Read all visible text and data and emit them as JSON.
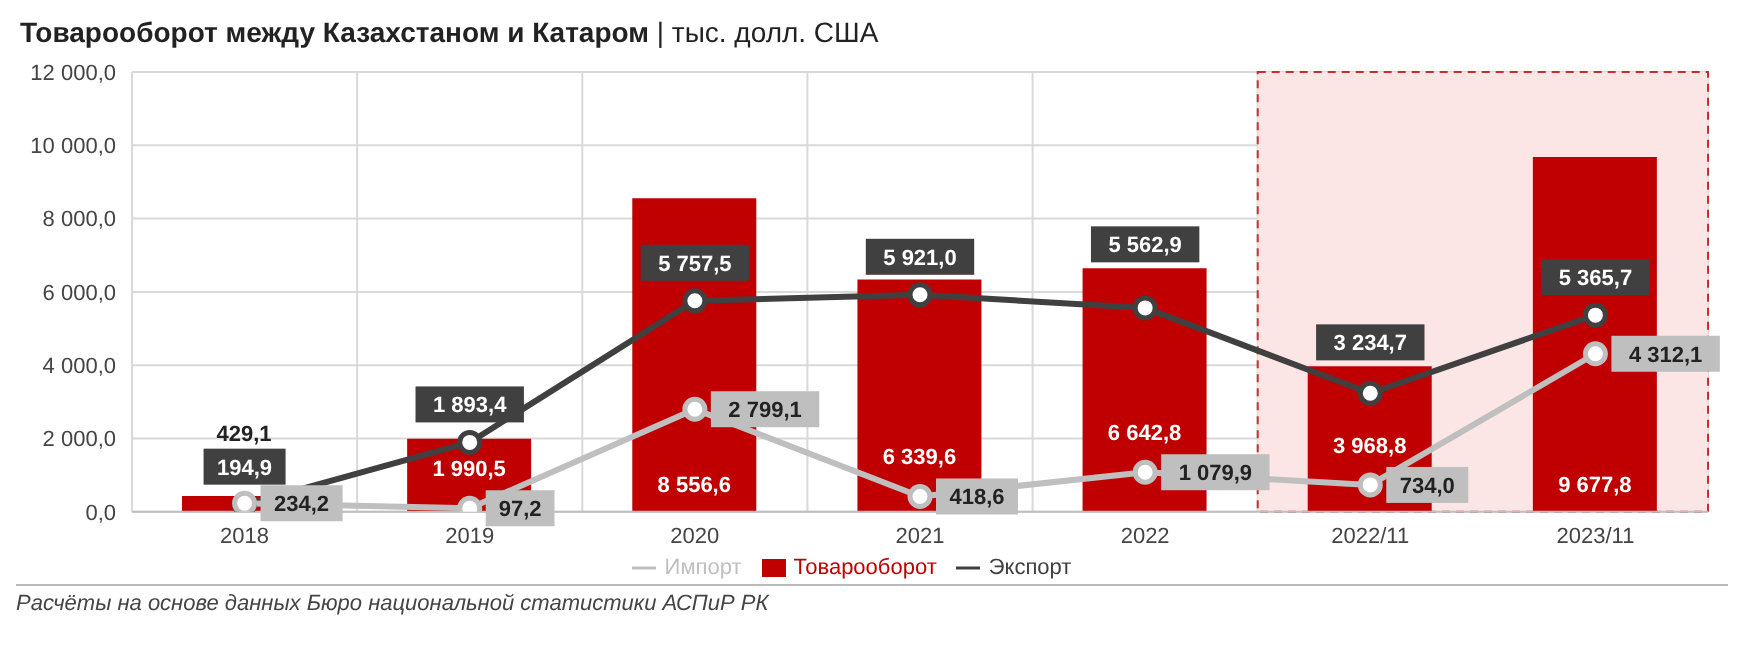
{
  "chart_data": {
    "type": "bar",
    "title": "Товарооборот между Казахстаном и Катаром",
    "subtitle": "| тыс. долл. США",
    "categories": [
      "2018",
      "2019",
      "2020",
      "2021",
      "2022",
      "2022/11",
      "2023/11"
    ],
    "series": [
      {
        "name": "Товарооборот",
        "color": "#c00000",
        "values": [
          429.1,
          1990.5,
          8556.6,
          6339.6,
          6642.8,
          3968.8,
          9677.8
        ],
        "value_labels": [
          "429,1",
          "1 990,5",
          "8 556,6",
          "6 339,6",
          "6 642,8",
          "3 968,8",
          "9 677,8"
        ]
      },
      {
        "name": "Экспорт",
        "type": "line",
        "color": "#404040",
        "values": [
          194.9,
          1893.4,
          5757.5,
          5921.0,
          5562.9,
          3234.7,
          5365.7
        ],
        "value_labels": [
          "194,9",
          "1 893,4",
          "5 757,5",
          "5 921,0",
          "5 562,9",
          "3 234,7",
          "5 365,7"
        ]
      },
      {
        "name": "Импорт",
        "type": "line",
        "color": "#bfbfbf",
        "values": [
          234.2,
          97.2,
          2799.1,
          418.6,
          1079.9,
          734.0,
          4312.1
        ],
        "value_labels": [
          "234,2",
          "97,2",
          "2 799,1",
          "418,6",
          "1 079,9",
          "734,0",
          "4 312,1"
        ]
      }
    ],
    "ylim": [
      0,
      12000
    ],
    "yticks": [
      {
        "value": 0,
        "label": "0,0"
      },
      {
        "value": 2000,
        "label": "2 000,0"
      },
      {
        "value": 4000,
        "label": "4 000,0"
      },
      {
        "value": 6000,
        "label": "6 000,0"
      },
      {
        "value": 8000,
        "label": "8 000,0"
      },
      {
        "value": 10000,
        "label": "10 000,0"
      },
      {
        "value": 12000,
        "label": "12 000,0"
      }
    ],
    "bands": [
      {
        "axis": "x",
        "from": "2022/11",
        "to": "2023/11",
        "color": "#fbe5e5"
      }
    ],
    "grid": true,
    "legend": "bottom",
    "marker": "circle",
    "annotations": [
      "Расчёты на основе данных Бюро национальной статистики АСПиР РК"
    ]
  }
}
